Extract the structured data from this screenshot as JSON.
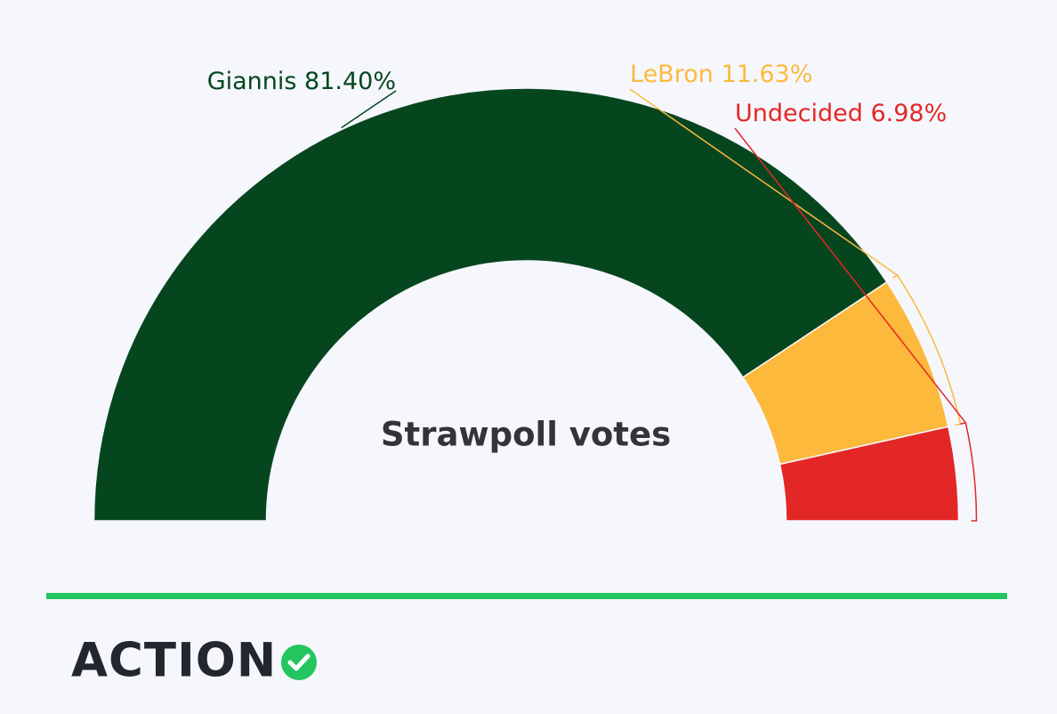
{
  "chart_data": {
    "type": "semi-donut",
    "title": "Strawpoll votes",
    "categories": [
      "Giannis",
      "LeBron",
      "Undecided"
    ],
    "values": [
      81.4,
      11.63,
      6.98
    ],
    "value_labels": [
      "81.40%",
      "11.63%",
      "6.98%"
    ],
    "colors": [
      "#06461f",
      "#fdb93c",
      "#e32726"
    ]
  },
  "logo": "ACTION"
}
